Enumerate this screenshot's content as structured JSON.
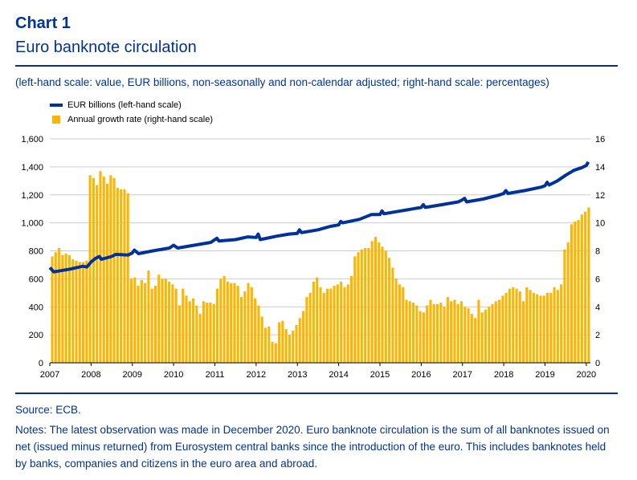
{
  "header": {
    "label": "Chart 1",
    "title": "Euro banknote circulation",
    "subtitle": "(left-hand scale: value, EUR billions, non-seasonally and non-calendar adjusted; right-hand scale: percentages)"
  },
  "footer": {
    "source": "Source: ECB.",
    "notes": "Notes: The latest observation was made in December 2020. Euro banknote circulation is the sum of all banknotes issued on net (issued minus returned) from Eurosystem central banks since the introduction of the euro. This includes banknotes held by banks, companies and citizens in the euro area and abroad."
  },
  "colors": {
    "line": "#003299",
    "bar": "#ffb400",
    "grid": "#cccccc",
    "text": "#003299"
  },
  "chart_data": {
    "type": "bar+line",
    "x_ticks": [
      "2007",
      "2008",
      "2009",
      "2010",
      "2011",
      "2012",
      "2013",
      "2014",
      "2015",
      "2016",
      "2017",
      "2018",
      "2019",
      "2020"
    ],
    "x_range": [
      2007,
      2020.1
    ],
    "y_left_range": [
      0,
      1600
    ],
    "y_left_ticks": [
      "0",
      "200",
      "400",
      "600",
      "800",
      "1,000",
      "1,200",
      "1,400",
      "1,600"
    ],
    "y_right_range": [
      0,
      16
    ],
    "y_right_ticks": [
      "0",
      "2",
      "4",
      "6",
      "8",
      "10",
      "12",
      "14",
      "16"
    ],
    "legend": [
      {
        "label": "EUR billions (left-hand scale)",
        "kind": "line"
      },
      {
        "label": "Annual growth rate (right-hand scale)",
        "kind": "bar"
      }
    ],
    "legend_position": "top-left",
    "grid": true,
    "series": [
      {
        "name": "EUR billions (left-hand scale)",
        "axis": "left",
        "kind": "line",
        "anchors": [
          [
            2007.0,
            680
          ],
          [
            2007.1,
            650
          ],
          [
            2007.5,
            670
          ],
          [
            2007.8,
            690
          ],
          [
            2007.9,
            685
          ],
          [
            2008.0,
            720
          ],
          [
            2008.1,
            745
          ],
          [
            2008.2,
            760
          ],
          [
            2008.25,
            740
          ],
          [
            2008.5,
            760
          ],
          [
            2008.6,
            775
          ],
          [
            2008.9,
            770
          ],
          [
            2009.0,
            785
          ],
          [
            2009.05,
            805
          ],
          [
            2009.15,
            780
          ],
          [
            2009.5,
            800
          ],
          [
            2009.9,
            820
          ],
          [
            2010.0,
            840
          ],
          [
            2010.1,
            820
          ],
          [
            2010.5,
            840
          ],
          [
            2010.9,
            860
          ],
          [
            2011.0,
            880
          ],
          [
            2011.05,
            890
          ],
          [
            2011.1,
            870
          ],
          [
            2011.5,
            880
          ],
          [
            2011.8,
            900
          ],
          [
            2012.0,
            895
          ],
          [
            2012.05,
            920
          ],
          [
            2012.1,
            880
          ],
          [
            2012.5,
            905
          ],
          [
            2012.8,
            920
          ],
          [
            2013.0,
            925
          ],
          [
            2013.05,
            950
          ],
          [
            2013.1,
            930
          ],
          [
            2013.5,
            950
          ],
          [
            2013.8,
            975
          ],
          [
            2014.0,
            985
          ],
          [
            2014.05,
            1010
          ],
          [
            2014.1,
            1000
          ],
          [
            2014.5,
            1025
          ],
          [
            2014.8,
            1060
          ],
          [
            2015.0,
            1060
          ],
          [
            2015.05,
            1085
          ],
          [
            2015.1,
            1065
          ],
          [
            2015.5,
            1085
          ],
          [
            2015.8,
            1100
          ],
          [
            2016.0,
            1110
          ],
          [
            2016.05,
            1130
          ],
          [
            2016.1,
            1110
          ],
          [
            2016.5,
            1130
          ],
          [
            2016.9,
            1150
          ],
          [
            2017.0,
            1165
          ],
          [
            2017.05,
            1175
          ],
          [
            2017.1,
            1150
          ],
          [
            2017.5,
            1170
          ],
          [
            2017.9,
            1200
          ],
          [
            2018.0,
            1210
          ],
          [
            2018.05,
            1230
          ],
          [
            2018.1,
            1210
          ],
          [
            2018.5,
            1230
          ],
          [
            2018.9,
            1255
          ],
          [
            2019.0,
            1265
          ],
          [
            2019.05,
            1290
          ],
          [
            2019.1,
            1270
          ],
          [
            2019.3,
            1300
          ],
          [
            2019.5,
            1340
          ],
          [
            2019.7,
            1375
          ],
          [
            2019.9,
            1395
          ],
          [
            2020.0,
            1410
          ],
          [
            2020.05,
            1435
          ]
        ]
      },
      {
        "name": "Annual growth rate (right-hand scale)",
        "axis": "right",
        "kind": "bar",
        "start": 2007.0,
        "step": 0.083333,
        "values": [
          7.6,
          7.9,
          8.2,
          7.7,
          7.8,
          7.7,
          7.4,
          7.3,
          7.2,
          7.2,
          7.3,
          13.4,
          13.2,
          12.7,
          13.7,
          13.3,
          12.8,
          13.4,
          13.2,
          12.5,
          12.4,
          12.4,
          12.1,
          6.0,
          6.1,
          5.5,
          5.9,
          5.7,
          6.6,
          5.3,
          5.5,
          6.3,
          6.0,
          6.0,
          5.8,
          5.6,
          5.3,
          4.1,
          5.3,
          4.8,
          4.4,
          4.6,
          4.1,
          3.5,
          4.4,
          4.3,
          4.3,
          4.2,
          5.3,
          6.0,
          6.2,
          5.8,
          5.7,
          5.7,
          5.5,
          4.7,
          5.1,
          5.7,
          5.4,
          4.6,
          4.1,
          3.3,
          2.5,
          2.6,
          1.5,
          1.4,
          2.9,
          3.0,
          2.4,
          2.0,
          2.3,
          2.7,
          3.2,
          3.7,
          4.7,
          5.0,
          5.8,
          6.1,
          5.4,
          5.0,
          5.3,
          5.3,
          5.5,
          5.6,
          5.8,
          5.4,
          5.6,
          6.2,
          7.6,
          7.9,
          8.1,
          8.2,
          8.2,
          8.7,
          9.0,
          8.6,
          8.3,
          8.0,
          7.5,
          6.8,
          6.0,
          5.6,
          5.4,
          4.5,
          4.4,
          4.3,
          4.1,
          3.7,
          3.6,
          4.1,
          4.5,
          4.2,
          4.2,
          4.3,
          4.0,
          4.7,
          4.4,
          4.5,
          4.2,
          4.4,
          4.0,
          3.9,
          3.5,
          3.2,
          4.5,
          3.6,
          3.8,
          4.0,
          4.2,
          4.4,
          4.5,
          4.8,
          5.0,
          5.3,
          5.4,
          5.3,
          5.1,
          4.4,
          5.4,
          5.2,
          5.0,
          4.9,
          4.8,
          4.8,
          5.0,
          5.0,
          5.4,
          5.2,
          5.6,
          8.1,
          8.6,
          9.9,
          10.1,
          10.2,
          10.6,
          10.8,
          11.1
        ]
      }
    ]
  }
}
